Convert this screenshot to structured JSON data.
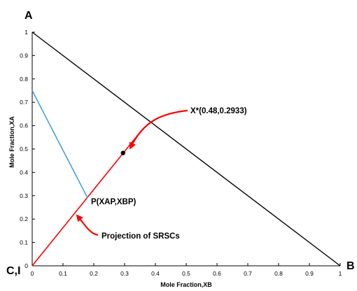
{
  "chart_data": {
    "type": "line",
    "xlabel": "Mole Fraction,XB",
    "ylabel": "Mole Fraction,XA",
    "xlim": [
      0,
      1
    ],
    "ylim": [
      0,
      1
    ],
    "x_ticks": [
      "0",
      "0.1",
      "0.2",
      "0.3",
      "0.4",
      "0.5",
      "0.6",
      "0.7",
      "0.8",
      "0.9",
      "1"
    ],
    "y_ticks": [
      "0",
      "0.1",
      "0.2",
      "0.3",
      "0.4",
      "0.5",
      "0.6",
      "0.7",
      "0.8",
      "0.9",
      "1"
    ],
    "grid": false,
    "series": [
      {
        "color": "#000000",
        "x": [
          0,
          1
        ],
        "y": [
          1,
          0
        ]
      },
      {
        "color": "#ff0000",
        "x": [
          0,
          0.35
        ],
        "y": [
          0,
          0.5716
        ]
      },
      {
        "color": "#4a9fe0",
        "x": [
          0,
          0.18
        ],
        "y": [
          0.75,
          0.29
        ]
      }
    ],
    "point": {
      "x": 0.295,
      "y": 0.483,
      "color": "#000000"
    },
    "corner_labels": {
      "top": "A",
      "bottom_left": "C,I",
      "bottom_right": "B"
    },
    "annotations": [
      {
        "text": "X*(0.48,0.2933)",
        "arrow_color": "#ff0000"
      },
      {
        "text": "P(XAP,XBP)"
      },
      {
        "text": "Projection of SRSCs",
        "arrow_color": "#ff0000"
      }
    ]
  }
}
